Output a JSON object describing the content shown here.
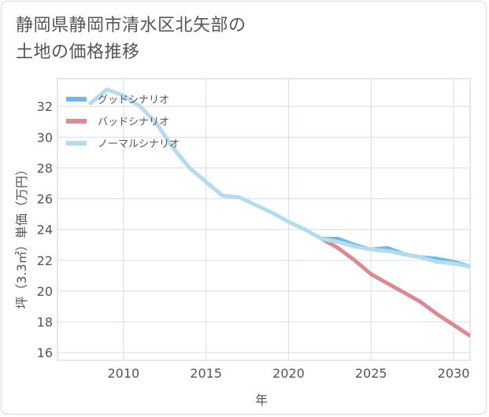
{
  "chart_data": {
    "type": "line",
    "title": [
      "静岡県静岡市清水区北矢部の",
      "土地の価格推移"
    ],
    "xlabel": "年",
    "ylabel": "坪（3.3㎡）単価（万円）",
    "xlim": [
      2006,
      2031
    ],
    "ylim": [
      15.5,
      33.8
    ],
    "x_ticks": [
      2010,
      2015,
      2020,
      2025,
      2030
    ],
    "y_ticks": [
      16,
      18,
      20,
      22,
      24,
      26,
      28,
      30,
      32
    ],
    "grid": true,
    "legend_position": "top-left",
    "series": [
      {
        "name": "グッドシナリオ",
        "color": "#6cb8e8",
        "x": [
          2022,
          2023,
          2024,
          2025,
          2026,
          2027,
          2028,
          2029,
          2030,
          2031
        ],
        "y": [
          23.4,
          23.4,
          23.0,
          22.7,
          22.8,
          22.4,
          22.2,
          22.1,
          21.9,
          21.6
        ]
      },
      {
        "name": "バッドシナリオ",
        "color": "#dc8a92",
        "x": [
          2022,
          2023,
          2024,
          2025,
          2026,
          2027,
          2028,
          2029,
          2030,
          2031
        ],
        "y": [
          23.4,
          22.8,
          22.0,
          21.1,
          20.5,
          19.9,
          19.3,
          18.5,
          17.8,
          17.1
        ]
      },
      {
        "name": "ノーマルシナリオ",
        "color": "#b5dcec",
        "x": [
          2008,
          2009,
          2010,
          2011,
          2012,
          2013,
          2014,
          2015,
          2016,
          2017,
          2018,
          2019,
          2020,
          2021,
          2022,
          2023,
          2024,
          2025,
          2026,
          2027,
          2028,
          2029,
          2030,
          2031
        ],
        "y": [
          32.2,
          33.1,
          32.7,
          32.0,
          30.9,
          29.3,
          28.0,
          27.1,
          26.2,
          26.1,
          25.6,
          25.1,
          24.5,
          24.0,
          23.4,
          23.2,
          22.9,
          22.7,
          22.6,
          22.4,
          22.2,
          21.9,
          21.8,
          21.6
        ]
      }
    ]
  }
}
